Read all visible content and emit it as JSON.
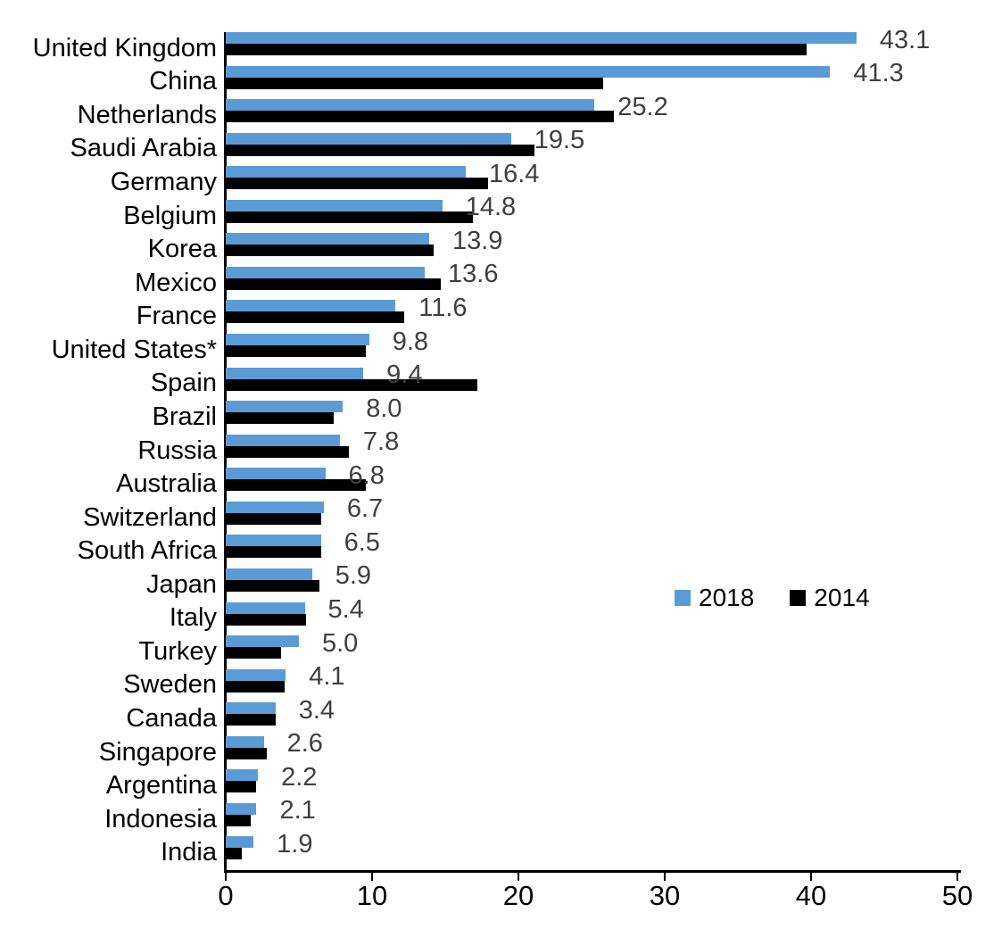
{
  "chart_data": {
    "type": "bar",
    "orientation": "horizontal",
    "title": "",
    "xlabel": "",
    "ylabel": "",
    "xlim": [
      0,
      50
    ],
    "x_ticks": [
      "0",
      "10",
      "20",
      "30",
      "40",
      "50"
    ],
    "grid": false,
    "legend_position": "center-right",
    "categories": [
      "United Kingdom",
      "China",
      "Netherlands",
      "Saudi Arabia",
      "Germany",
      "Belgium",
      "Korea",
      "Mexico",
      "France",
      "United States*",
      "Spain",
      "Brazil",
      "Russia",
      "Australia",
      "Switzerland",
      "South Africa",
      "Japan",
      "Italy",
      "Turkey",
      "Sweden",
      "Canada",
      "Singapore",
      "Argentina",
      "Indonesia",
      "India"
    ],
    "series": [
      {
        "name": "2018",
        "color": "#5B9BD5",
        "values": [
          43.1,
          41.3,
          25.2,
          19.5,
          16.4,
          14.8,
          13.9,
          13.6,
          11.6,
          9.8,
          9.4,
          8.0,
          7.8,
          6.8,
          6.7,
          6.5,
          5.9,
          5.4,
          5.0,
          4.1,
          3.4,
          2.6,
          2.2,
          2.1,
          1.9
        ],
        "value_labels": [
          "43.1",
          "41.3",
          "25.2",
          "19.5",
          "16.4",
          "14.8",
          "13.9",
          "13.6",
          "11.6",
          "9.8",
          "9.4",
          "8.0",
          "7.8",
          "6.8",
          "6.7",
          "6.5",
          "5.9",
          "5.4",
          "5.0",
          "4.1",
          "3.4",
          "2.6",
          "2.2",
          "2.1",
          "1.9"
        ]
      },
      {
        "name": "2014",
        "color": "#000000",
        "values": [
          39.7,
          25.8,
          26.5,
          21.1,
          17.9,
          16.9,
          14.2,
          14.7,
          12.2,
          9.6,
          17.2,
          7.4,
          8.4,
          9.6,
          6.5,
          6.5,
          6.4,
          5.5,
          3.8,
          4.0,
          3.4,
          2.8,
          2.1,
          1.7,
          1.1
        ]
      }
    ],
    "value_label_color": "#3f3f3f"
  }
}
